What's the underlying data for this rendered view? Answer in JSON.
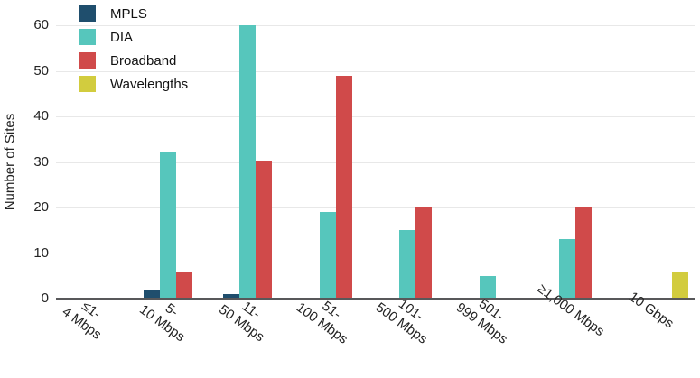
{
  "chart_data": {
    "type": "bar",
    "title": "",
    "xlabel": "",
    "ylabel": "Number of Sites",
    "ylim": [
      0,
      60
    ],
    "yticks": [
      0,
      10,
      20,
      30,
      40,
      50,
      60
    ],
    "grid": true,
    "legend_position": "top-left",
    "categories": [
      "≤1- 4 Mbps",
      "5- 10 Mbps",
      "11- 50 Mbps",
      "51- 100 Mbps",
      "101- 500 Mbps",
      "501- 999 Mbps",
      "≥1,000 Mbps",
      "10 Gbps"
    ],
    "category_label_lines": [
      [
        "≤1-",
        "4 Mbps"
      ],
      [
        "5-",
        "10 Mbps"
      ],
      [
        "11-",
        "50 Mbps"
      ],
      [
        "51-",
        "100 Mbps"
      ],
      [
        "101-",
        "500 Mbps"
      ],
      [
        "501-",
        "999 Mbps"
      ],
      [
        "≥1,000 Mbps"
      ],
      [
        "10 Gbps"
      ]
    ],
    "series": [
      {
        "name": "MPLS",
        "color": "#1F4E6D",
        "values": [
          0,
          2,
          1,
          0,
          0,
          0,
          0,
          0
        ]
      },
      {
        "name": "DIA",
        "color": "#56C6BC",
        "values": [
          0,
          32,
          60,
          19,
          15,
          5,
          13,
          0
        ]
      },
      {
        "name": "Broadband",
        "color": "#D04A4A",
        "values": [
          0,
          6,
          30,
          49,
          20,
          0,
          20,
          0
        ]
      },
      {
        "name": "Wavelengths",
        "color": "#D2CC3E",
        "values": [
          0,
          0,
          0,
          0,
          0,
          0,
          0,
          6
        ]
      }
    ],
    "colors": {
      "grid": "#e8e8e8",
      "axis": "#58585a",
      "text": "#232323"
    }
  }
}
